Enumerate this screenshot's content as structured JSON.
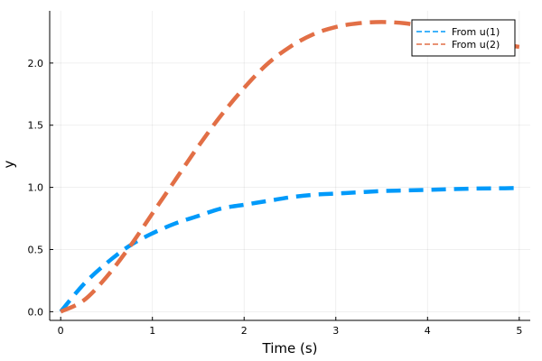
{
  "chart_data": {
    "type": "line",
    "title": "",
    "xlabel": "Time (s)",
    "ylabel": "y",
    "xlim": [
      -0.12,
      5.12
    ],
    "ylim": [
      -0.07,
      2.42
    ],
    "x_ticks": [
      0,
      1,
      2,
      3,
      4,
      5
    ],
    "x_tick_labels": [
      "0",
      "1",
      "2",
      "3",
      "4",
      "5"
    ],
    "y_ticks": [
      0.0,
      0.5,
      1.0,
      1.5,
      2.0
    ],
    "y_tick_labels": [
      "0.0",
      "0.5",
      "1.0",
      "1.5",
      "2.0"
    ],
    "grid": true,
    "legend_position": "top-right",
    "x": [
      0,
      0.25,
      0.5,
      0.75,
      1.0,
      1.25,
      1.5,
      1.75,
      2.0,
      2.25,
      2.5,
      2.75,
      3.0,
      3.25,
      3.5,
      3.75,
      4.0,
      4.25,
      4.5,
      4.75,
      5.0
    ],
    "series": [
      {
        "name": "From u(1)",
        "color": "#009AFA",
        "values": [
          0,
          0.22,
          0.39,
          0.53,
          0.63,
          0.71,
          0.77,
          0.83,
          0.86,
          0.89,
          0.92,
          0.94,
          0.95,
          0.96,
          0.97,
          0.975,
          0.98,
          0.985,
          0.99,
          0.992,
          0.995
        ]
      },
      {
        "name": "From u(2)",
        "color": "#E26F46",
        "values": [
          0,
          0.09,
          0.28,
          0.52,
          0.79,
          1.06,
          1.33,
          1.58,
          1.8,
          1.99,
          2.13,
          2.23,
          2.29,
          2.32,
          2.33,
          2.32,
          2.29,
          2.25,
          2.2,
          2.16,
          2.13
        ]
      }
    ]
  }
}
